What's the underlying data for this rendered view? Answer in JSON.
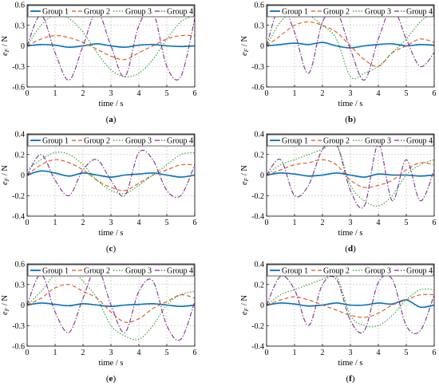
{
  "colors": {
    "group1": "#0072BD",
    "group2": "#D95319",
    "group3": "#1DA01D",
    "group4": "#7E2F8E"
  },
  "chart_data": [
    {
      "type": "line",
      "panel": "(a)",
      "xlabel": "time / s",
      "ylabel": "eF / N",
      "xlim": [
        0,
        6
      ],
      "ylim": [
        -0.6,
        0.6
      ],
      "xticks": [
        0,
        1,
        2,
        3,
        4,
        5,
        6
      ],
      "yticks": [
        -0.6,
        -0.3,
        0,
        0.3,
        0.6
      ],
      "legend": "top",
      "series": [
        {
          "name": "Group 1",
          "x": [
            0,
            0.5,
            1,
            1.5,
            2,
            2.5,
            3,
            3.5,
            4,
            4.5,
            5,
            5.5,
            6
          ],
          "values": [
            0,
            0.02,
            0.01,
            -0.02,
            0,
            0.03,
            0,
            -0.02,
            0.01,
            0.02,
            0,
            -0.01,
            0
          ]
        },
        {
          "name": "Group 2",
          "x": [
            0,
            0.5,
            1,
            1.5,
            2,
            2.5,
            3,
            3.5,
            4,
            4.5,
            5,
            5.5,
            6
          ],
          "values": [
            0,
            0.1,
            0.15,
            0.12,
            0.05,
            -0.05,
            -0.15,
            -0.2,
            -0.1,
            0,
            0.1,
            0.15,
            0.15
          ]
        },
        {
          "name": "Group 3",
          "x": [
            0,
            0.5,
            1,
            1.5,
            2,
            2.5,
            3,
            3.5,
            4,
            4.5,
            5,
            5.5,
            6
          ],
          "values": [
            0,
            0.3,
            0.45,
            0.4,
            0.2,
            -0.1,
            -0.35,
            -0.45,
            -0.4,
            -0.2,
            0.1,
            0.35,
            0.45
          ]
        },
        {
          "name": "Group 4",
          "x": [
            0,
            0.5,
            1,
            1.5,
            2,
            2.5,
            3,
            3.5,
            4,
            4.5,
            5,
            5.5,
            6
          ],
          "values": [
            0,
            0.45,
            -0.1,
            -0.5,
            0,
            0.5,
            0,
            -0.45,
            0.3,
            0.5,
            -0.3,
            -0.45,
            0.4
          ]
        }
      ]
    },
    {
      "type": "line",
      "panel": "(b)",
      "xlabel": "time / s",
      "ylabel": "eF / N",
      "xlim": [
        0,
        6
      ],
      "ylim": [
        -0.6,
        0.6
      ],
      "xticks": [
        0,
        1,
        2,
        3,
        4,
        5,
        6
      ],
      "yticks": [
        -0.6,
        -0.3,
        0,
        0.3,
        0.6
      ],
      "legend": "top",
      "series": [
        {
          "name": "Group 1",
          "x": [
            0,
            0.5,
            1,
            1.5,
            2,
            2.5,
            3,
            3.5,
            4,
            4.5,
            5,
            5.5,
            6
          ],
          "values": [
            0,
            0.02,
            0.04,
            0.02,
            0.05,
            0,
            -0.03,
            0,
            0.02,
            0.03,
            0,
            0.02,
            0.01
          ]
        },
        {
          "name": "Group 2",
          "x": [
            0,
            0.5,
            1,
            1.5,
            2,
            2.5,
            3,
            3.5,
            4,
            4.5,
            5,
            5.5,
            6
          ],
          "values": [
            0,
            0.15,
            0.3,
            0.35,
            0.3,
            0.2,
            0,
            -0.2,
            -0.3,
            -0.1,
            0,
            0.1,
            0.05
          ]
        },
        {
          "name": "Group 3",
          "x": [
            0,
            0.5,
            1,
            1.5,
            2,
            2.5,
            3,
            3.5,
            4,
            4.5,
            5,
            5.5,
            6
          ],
          "values": [
            0,
            0.35,
            0.5,
            0.45,
            0.3,
            0.1,
            -0.45,
            -0.4,
            -0.3,
            -0.1,
            0.1,
            0.35,
            0.5
          ]
        },
        {
          "name": "Group 4",
          "x": [
            0,
            0.5,
            1,
            1.5,
            2,
            2.5,
            3,
            3.5,
            4,
            4.5,
            5,
            5.5,
            6
          ],
          "values": [
            0,
            0.6,
            0.2,
            -0.4,
            0.35,
            0.5,
            -0.05,
            -0.5,
            0.1,
            0.55,
            0.1,
            -0.3,
            -0.1
          ]
        }
      ]
    },
    {
      "type": "line",
      "panel": "(c)",
      "xlabel": "time / s",
      "ylabel": "eF / N",
      "xlim": [
        0,
        6
      ],
      "ylim": [
        -0.4,
        0.4
      ],
      "xticks": [
        0,
        1,
        2,
        3,
        4,
        5,
        6
      ],
      "yticks": [
        -0.4,
        -0.2,
        0,
        0.2,
        0.4
      ],
      "legend": "top",
      "series": [
        {
          "name": "Group 1",
          "x": [
            0,
            0.5,
            1,
            1.5,
            2,
            2.5,
            3,
            3.5,
            4,
            4.5,
            5,
            5.5,
            6
          ],
          "values": [
            0,
            0.04,
            0.02,
            -0.01,
            0.02,
            0,
            -0.02,
            0,
            0.01,
            0.02,
            0,
            -0.02,
            0
          ]
        },
        {
          "name": "Group 2",
          "x": [
            0,
            0.5,
            1,
            1.5,
            2,
            2.5,
            3,
            3.5,
            4,
            4.5,
            5,
            5.5,
            6
          ],
          "values": [
            0,
            0.1,
            0.15,
            0.12,
            0.05,
            -0.05,
            -0.12,
            -0.15,
            -0.08,
            0,
            0.05,
            0.1,
            0.1
          ]
        },
        {
          "name": "Group 3",
          "x": [
            0,
            0.5,
            1,
            1.5,
            2,
            2.5,
            3,
            3.5,
            4,
            4.5,
            5,
            5.5,
            6
          ],
          "values": [
            0.05,
            0.15,
            0.22,
            0.2,
            0.1,
            -0.05,
            -0.15,
            -0.18,
            -0.1,
            0,
            0.1,
            0.2,
            0.22
          ]
        },
        {
          "name": "Group 4",
          "x": [
            0,
            0.5,
            1,
            1.5,
            2,
            2.5,
            3,
            3.5,
            4,
            4.5,
            5,
            5.5,
            6
          ],
          "values": [
            0,
            0.2,
            -0.05,
            -0.2,
            0.05,
            0.15,
            -0.05,
            -0.2,
            0.22,
            0.15,
            -0.15,
            -0.2,
            0.1
          ]
        }
      ]
    },
    {
      "type": "line",
      "panel": "(d)",
      "xlabel": "time / s",
      "ylabel": "eF / N",
      "xlim": [
        0,
        6
      ],
      "ylim": [
        -0.4,
        0.4
      ],
      "xticks": [
        0,
        1,
        2,
        3,
        4,
        5,
        6
      ],
      "yticks": [
        -0.4,
        -0.2,
        0,
        0.2,
        0.4
      ],
      "legend": "top",
      "series": [
        {
          "name": "Group 1",
          "x": [
            0,
            0.5,
            1,
            1.5,
            2,
            2.5,
            3,
            3.5,
            4,
            4.5,
            5,
            5.5,
            6
          ],
          "values": [
            0,
            0.02,
            0.01,
            -0.01,
            0,
            0.02,
            0,
            -0.02,
            0.01,
            0,
            0,
            -0.01,
            0
          ]
        },
        {
          "name": "Group 2",
          "x": [
            0,
            0.5,
            1,
            1.5,
            2,
            2.5,
            3,
            3.5,
            4,
            4.5,
            5,
            5.5,
            6
          ],
          "values": [
            0,
            0.05,
            0.1,
            0.12,
            0.15,
            0.1,
            -0.05,
            -0.12,
            -0.1,
            -0.05,
            0.05,
            0.12,
            0.1
          ]
        },
        {
          "name": "Group 3",
          "x": [
            0,
            0.5,
            1,
            1.5,
            2,
            2.5,
            3,
            3.5,
            4,
            4.5,
            5,
            5.5,
            6
          ],
          "values": [
            0,
            0.1,
            0.15,
            0.2,
            0.25,
            0.3,
            -0.1,
            -0.25,
            -0.3,
            -0.2,
            0,
            0.1,
            0.15
          ]
        },
        {
          "name": "Group 4",
          "x": [
            0,
            0.5,
            1,
            1.5,
            2,
            2.5,
            3,
            3.5,
            4,
            4.5,
            5,
            5.5,
            6
          ],
          "values": [
            0,
            0.15,
            -0.2,
            -0.1,
            0.25,
            0.3,
            -0.15,
            -0.3,
            0.3,
            -0.25,
            0.15,
            -0.25,
            0.05
          ]
        }
      ]
    },
    {
      "type": "line",
      "panel": "(e)",
      "xlabel": "time / s",
      "ylabel": "eF / N",
      "xlim": [
        0,
        6
      ],
      "ylim": [
        -0.6,
        0.6
      ],
      "xticks": [
        0,
        1,
        2,
        3,
        4,
        5,
        6
      ],
      "yticks": [
        -0.6,
        -0.3,
        0,
        0.3,
        0.6
      ],
      "legend": "top",
      "series": [
        {
          "name": "Group 1",
          "x": [
            0,
            0.5,
            1,
            1.5,
            2,
            2.5,
            3,
            3.5,
            4,
            4.5,
            5,
            5.5,
            6
          ],
          "values": [
            0,
            0.03,
            0.01,
            -0.01,
            0.02,
            0,
            -0.02,
            0,
            0.01,
            0.02,
            0,
            -0.02,
            0
          ]
        },
        {
          "name": "Group 2",
          "x": [
            0,
            0.5,
            1,
            1.5,
            2,
            2.5,
            3,
            3.5,
            4,
            4.5,
            5,
            5.5,
            6
          ],
          "values": [
            0,
            0.1,
            0.25,
            0.3,
            0.2,
            0.1,
            -0.1,
            -0.25,
            -0.2,
            -0.05,
            0.05,
            0.15,
            0.1
          ]
        },
        {
          "name": "Group 3",
          "x": [
            0,
            0.5,
            1,
            1.5,
            2,
            2.5,
            3,
            3.5,
            4,
            4.5,
            5,
            5.5,
            6
          ],
          "values": [
            0,
            0.2,
            0.45,
            0.55,
            0.35,
            0.1,
            -0.3,
            -0.45,
            -0.5,
            -0.3,
            0,
            0.15,
            0.2
          ]
        },
        {
          "name": "Group 4",
          "x": [
            0,
            0.5,
            1,
            1.5,
            2,
            2.5,
            3,
            3.5,
            4,
            4.5,
            5,
            5.5,
            6
          ],
          "values": [
            0,
            0.45,
            -0.1,
            -0.4,
            0.1,
            0.55,
            0,
            -0.4,
            0.2,
            0.35,
            -0.3,
            -0.5,
            0.05
          ]
        }
      ]
    },
    {
      "type": "line",
      "panel": "(f)",
      "xlabel": "time / s",
      "ylabel": "eF / N",
      "xlim": [
        0,
        6
      ],
      "ylim": [
        -0.4,
        0.4
      ],
      "xticks": [
        0,
        1,
        2,
        3,
        4,
        5,
        6
      ],
      "yticks": [
        -0.4,
        -0.2,
        0,
        0.2,
        0.4
      ],
      "legend": "top",
      "series": [
        {
          "name": "Group 1",
          "x": [
            0,
            0.5,
            1,
            1.5,
            2,
            2.5,
            3,
            3.5,
            4,
            4.5,
            5,
            5.5,
            6
          ],
          "values": [
            0,
            0.02,
            0.01,
            -0.01,
            0,
            0.02,
            0,
            0,
            0.02,
            0.01,
            0.05,
            -0.02,
            0
          ]
        },
        {
          "name": "Group 2",
          "x": [
            0,
            0.5,
            1,
            1.5,
            2,
            2.5,
            3,
            3.5,
            4,
            4.5,
            5,
            5.5,
            6
          ],
          "values": [
            0,
            0.05,
            0.08,
            0.05,
            0,
            -0.05,
            -0.1,
            -0.12,
            -0.08,
            0,
            0.05,
            0.1,
            0.1
          ]
        },
        {
          "name": "Group 3",
          "x": [
            0,
            0.5,
            1,
            1.5,
            2,
            2.5,
            3,
            3.5,
            4,
            4.5,
            5,
            5.5,
            6
          ],
          "values": [
            0,
            0.1,
            0.15,
            0.2,
            0.25,
            0.28,
            -0.1,
            -0.2,
            -0.2,
            -0.1,
            0.05,
            0.15,
            0.15
          ]
        },
        {
          "name": "Group 4",
          "x": [
            0,
            0.5,
            1,
            1.5,
            2,
            2.5,
            3,
            3.5,
            4,
            4.5,
            5,
            5.5,
            6
          ],
          "values": [
            0,
            0.28,
            0.15,
            -0.2,
            0.2,
            0.25,
            -0.15,
            -0.25,
            0.22,
            0.25,
            -0.2,
            -0.25,
            0.1
          ]
        }
      ]
    }
  ]
}
